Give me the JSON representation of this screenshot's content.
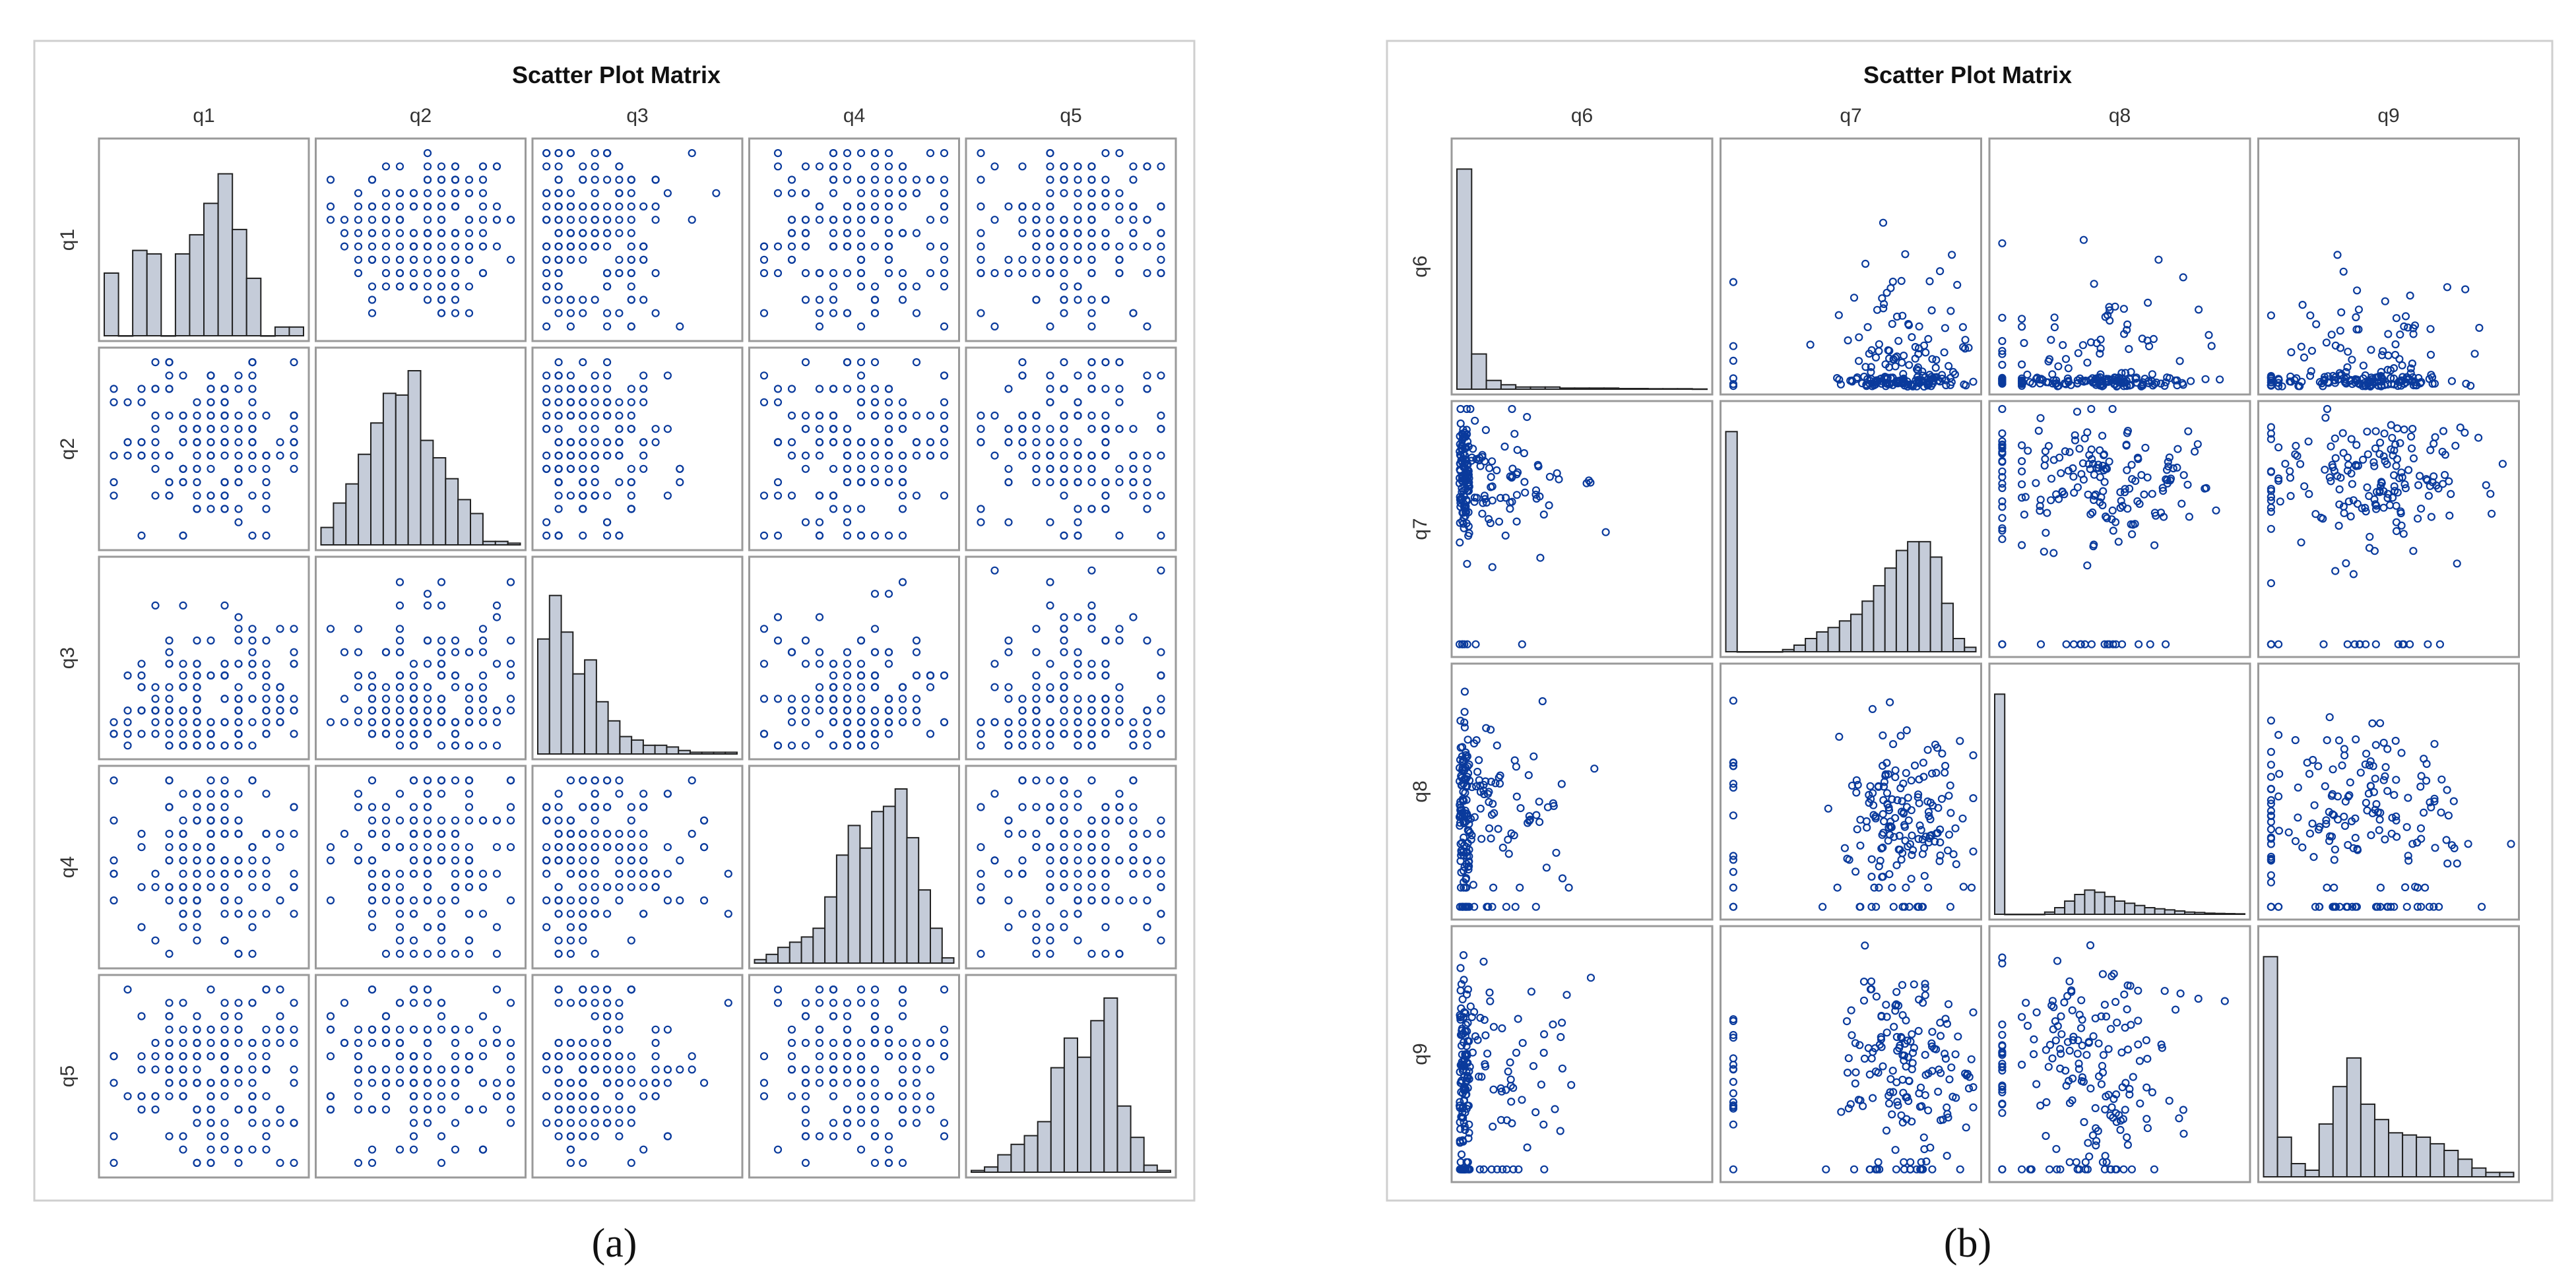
{
  "figure": {
    "colors": {
      "marker": "#0a3a9c",
      "histogram_fill": "#c5ccd9",
      "histogram_stroke": "#222222",
      "frame": "#9a9a9a",
      "outer_frame": "#cfcfcf"
    }
  },
  "chart_data": [
    {
      "type": "scatter",
      "subtype": "scatter-matrix",
      "title": "Scatter Plot Matrix",
      "caption": "(a)",
      "variables": [
        "q1",
        "q2",
        "q3",
        "q4",
        "q5"
      ],
      "diagonal": "histogram",
      "histograms": {
        "q1": [
          0.36,
          0,
          0.49,
          0.47,
          0,
          0.47,
          0.58,
          0.76,
          0.93,
          0.61,
          0.33,
          0,
          0.05,
          0.05
        ],
        "q2": [
          0.1,
          0.24,
          0.35,
          0.52,
          0.7,
          0.87,
          0.86,
          1.0,
          0.6,
          0.5,
          0.38,
          0.26,
          0.18,
          0.02,
          0.02,
          0.01
        ],
        "q3": [
          0.66,
          0.91,
          0.7,
          0.46,
          0.54,
          0.3,
          0.19,
          0.1,
          0.08,
          0.05,
          0.05,
          0.04,
          0.02,
          0.01,
          0.01,
          0.01,
          0.01
        ],
        "q4": [
          0.02,
          0.05,
          0.09,
          0.12,
          0.15,
          0.2,
          0.38,
          0.62,
          0.79,
          0.66,
          0.87,
          0.9,
          1.0,
          0.72,
          0.42,
          0.2,
          0.03
        ],
        "q5": [
          0.01,
          0.03,
          0.1,
          0.16,
          0.21,
          0.29,
          0.6,
          0.77,
          0.66,
          0.87,
          1.0,
          0.38,
          0.2,
          0.04,
          0.01
        ]
      },
      "levels": {
        "q1": 14,
        "q2": 14,
        "q3": 16,
        "q4": 14,
        "q5": 14
      }
    },
    {
      "type": "scatter",
      "subtype": "scatter-matrix",
      "title": "Scatter Plot Matrix",
      "caption": "(b)",
      "variables": [
        "q6",
        "q7",
        "q8",
        "q9"
      ],
      "diagonal": "histogram",
      "histograms": {
        "q6": [
          1.0,
          0.16,
          0.04,
          0.02,
          0.01,
          0.01,
          0.01,
          0.005,
          0.005,
          0.005,
          0.005,
          0.003,
          0.003,
          0.002,
          0.002,
          0.002,
          0.001
        ],
        "q7": [
          1.0,
          0,
          0,
          0,
          0,
          0.01,
          0.03,
          0.06,
          0.09,
          0.11,
          0.14,
          0.17,
          0.23,
          0.3,
          0.38,
          0.46,
          0.5,
          0.5,
          0.43,
          0.22,
          0.06,
          0.02
        ],
        "q8": [
          1.0,
          0,
          0,
          0,
          0,
          0.01,
          0.03,
          0.06,
          0.09,
          0.11,
          0.1,
          0.08,
          0.06,
          0.05,
          0.04,
          0.03,
          0.025,
          0.02,
          0.015,
          0.01,
          0.008,
          0.005,
          0.004,
          0.003,
          0.002
        ],
        "q9": [
          1.0,
          0.18,
          0.06,
          0.03,
          0.24,
          0.41,
          0.54,
          0.33,
          0.26,
          0.2,
          0.19,
          0.18,
          0.15,
          0.12,
          0.08,
          0.04,
          0.02,
          0.02
        ]
      }
    }
  ]
}
